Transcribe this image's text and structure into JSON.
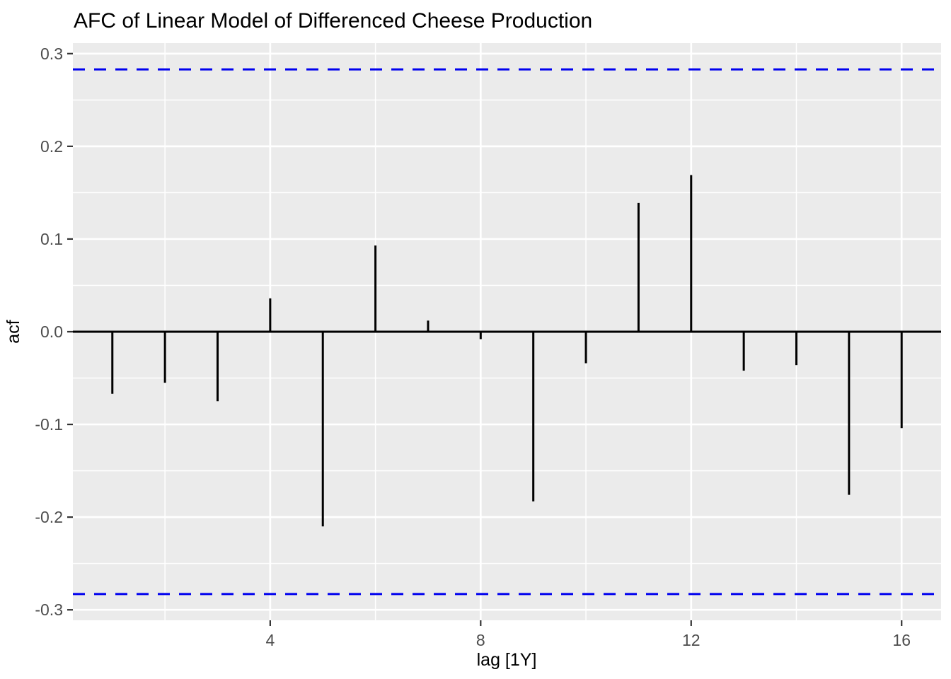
{
  "title": "AFC of Linear Model of Differenced Cheese Production",
  "colors": {
    "panel_background": "#EBEBEB",
    "grid": "#FFFFFF",
    "bar": "#000000",
    "zero_line": "#000000",
    "confidence_line": "#0000EE",
    "tick_mark": "#333333",
    "tick_label": "#4D4D4D",
    "title_text": "#000000"
  },
  "chart_data": {
    "type": "bar",
    "title": "AFC of Linear Model of Differenced Cheese Production",
    "xlabel": "lag [1Y]",
    "ylabel": "acf",
    "x": [
      1,
      2,
      3,
      4,
      5,
      6,
      7,
      8,
      9,
      10,
      11,
      12,
      13,
      14,
      15,
      16
    ],
    "values": [
      -0.067,
      -0.055,
      -0.075,
      0.036,
      -0.21,
      0.093,
      0.012,
      -0.008,
      -0.183,
      -0.034,
      0.139,
      0.169,
      -0.042,
      -0.036,
      -0.176,
      -0.104
    ],
    "ci_upper": 0.283,
    "ci_lower": -0.283,
    "xlim": [
      0.25,
      16.75
    ],
    "ylim": [
      -0.3113,
      0.3113
    ],
    "x_ticks": [
      4,
      8,
      12,
      16
    ],
    "x_tick_labels": [
      "4",
      "8",
      "12",
      "16"
    ],
    "x_minor_ticks": [
      2,
      6,
      10,
      14
    ],
    "y_ticks": [
      0.3,
      0.2,
      0.1,
      0.0,
      -0.1,
      -0.2,
      -0.3
    ],
    "y_tick_labels": [
      "0.3",
      "0.2",
      "0.1",
      "0.0",
      "-0.1",
      "-0.2",
      "-0.3"
    ],
    "y_minor_ticks": [
      0.25,
      0.15,
      0.05,
      -0.05,
      -0.15,
      -0.25
    ],
    "grid": true,
    "legend": false
  }
}
